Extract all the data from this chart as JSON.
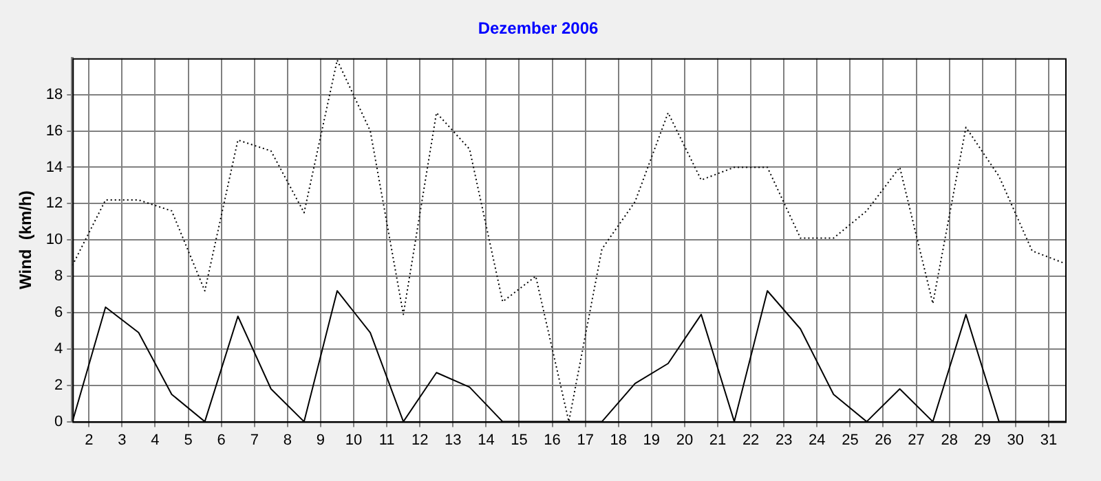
{
  "chart_data": {
    "type": "line",
    "title": "Dezember 2006",
    "ylabel": "Wind  (km/h)",
    "x": [
      1.5,
      2.5,
      3.5,
      4.5,
      5.5,
      6.5,
      7.5,
      8.5,
      9.5,
      10.5,
      11.5,
      12.5,
      13.5,
      14.5,
      15.5,
      16.5,
      17.5,
      18.5,
      19.5,
      20.5,
      21.5,
      22.5,
      23.5,
      24.5,
      25.5,
      26.5,
      27.5,
      28.5,
      29.5,
      30.5,
      31.5
    ],
    "series": [
      {
        "color": "#000000",
        "line_style": "dotted",
        "values": [
          8.6,
          12.2,
          12.2,
          11.6,
          7.2,
          15.5,
          14.9,
          11.5,
          19.9,
          16.0,
          5.9,
          17.0,
          15.0,
          6.6,
          8.0,
          0,
          9.5,
          12.1,
          17.0,
          13.3,
          14.0,
          14.0,
          10.1,
          10.1,
          11.6,
          14.0,
          6.5,
          16.2,
          13.5,
          9.4,
          8.7
        ]
      },
      {
        "color": "#000000",
        "line_style": "solid",
        "values": [
          0,
          6.3,
          4.9,
          1.5,
          0,
          5.8,
          1.8,
          0,
          7.2,
          4.9,
          0,
          2.7,
          1.9,
          0,
          0,
          0,
          0,
          2.1,
          3.2,
          5.9,
          0,
          7.2,
          5.1,
          1.5,
          0,
          1.8,
          0,
          5.9,
          0,
          0,
          0
        ]
      }
    ],
    "xlim": [
      1.5,
      31.5
    ],
    "xticks": [
      2,
      3,
      4,
      5,
      6,
      7,
      8,
      9,
      10,
      11,
      12,
      13,
      14,
      15,
      16,
      17,
      18,
      19,
      20,
      21,
      22,
      23,
      24,
      25,
      26,
      27,
      28,
      29,
      30,
      31
    ],
    "ylim": [
      0,
      20
    ],
    "yticks": [
      0,
      2,
      4,
      6,
      8,
      10,
      12,
      14,
      16,
      18
    ],
    "grid": true,
    "marker": "none",
    "legend": false
  }
}
